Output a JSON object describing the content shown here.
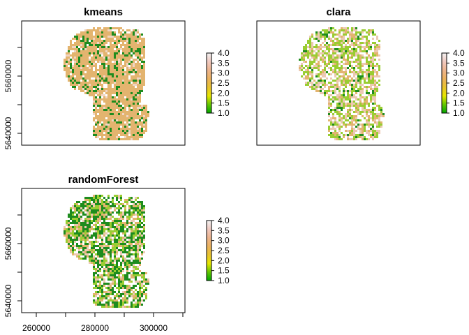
{
  "panels": [
    {
      "id": "kmeans",
      "title": "kmeans",
      "dominant": "#E3B46F",
      "minor": [
        "#ffffff",
        "#F0D5C4",
        "#E3B46F",
        "#E3B46F",
        "#1E8C1E"
      ],
      "weights": [
        0.1,
        0.06,
        0.62,
        0.08,
        0.14
      ],
      "show_x_axis": false,
      "show_y_axis": true
    },
    {
      "id": "clara",
      "title": "clara",
      "dominant": "#ffffff",
      "minor": [
        "#ffffff",
        "#EBC9B2",
        "#E3B46F",
        "#9ACD32",
        "#1E8C1E"
      ],
      "weights": [
        0.3,
        0.2,
        0.14,
        0.3,
        0.06
      ],
      "show_x_axis": false,
      "show_y_axis": false
    },
    {
      "id": "randomForest",
      "title": "randomForest",
      "dominant": "#1E8C1E",
      "minor": [
        "#ffffff",
        "#EBC9B2",
        "#E3B46F",
        "#9ACD32",
        "#1E8C1E"
      ],
      "weights": [
        0.22,
        0.1,
        0.16,
        0.2,
        0.32
      ],
      "show_x_axis": true,
      "show_y_axis": true
    }
  ],
  "y_axis": {
    "ticks": [
      "5640000",
      "5660000"
    ]
  },
  "x_axis": {
    "ticks": [
      "260000",
      "280000",
      "300000"
    ]
  },
  "legend": {
    "labels": [
      "4.0",
      "3.5",
      "3.0",
      "2.5",
      "2.0",
      "1.5",
      "1.0"
    ],
    "gradient": [
      "#00A600",
      "#63C600",
      "#E6E600",
      "#E8C32E",
      "#EBB25E",
      "#EDB48E",
      "#F0C9C0",
      "#F2F2F2"
    ]
  }
}
